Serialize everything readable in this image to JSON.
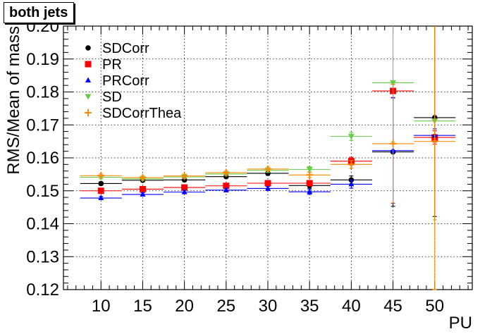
{
  "chart_data": {
    "type": "scatter",
    "title": "both jets",
    "xlabel": "PU",
    "ylabel": "RMS/Mean of mass",
    "xlim": [
      5.5,
      54.5
    ],
    "ylim": [
      0.12,
      0.2
    ],
    "grid": true,
    "legend_position": "top-left",
    "x_ticks": [
      10,
      15,
      20,
      25,
      30,
      35,
      40,
      45,
      50
    ],
    "y_ticks": [
      "0.12",
      "0.13",
      "0.14",
      "0.15",
      "0.16",
      "0.17",
      "0.18",
      "0.19",
      "0.20"
    ],
    "x": [
      10,
      15,
      20,
      25,
      30,
      35,
      40,
      45,
      50
    ],
    "series": [
      {
        "name": "SDCorr",
        "color": "#000000",
        "marker": "circle",
        "values": [
          0.1522,
          0.1532,
          0.1533,
          0.1543,
          0.1553,
          0.1516,
          0.1533,
          0.1618,
          0.1722
        ],
        "errors": [
          0.0005,
          0.0005,
          0.0005,
          0.0005,
          0.0006,
          0.0008,
          0.0012,
          0.0165,
          0.03
        ]
      },
      {
        "name": "PR",
        "color": "#ff0000",
        "marker": "square",
        "values": [
          0.15,
          0.1505,
          0.151,
          0.1515,
          0.1523,
          0.1523,
          0.159,
          0.1803,
          0.1662
        ],
        "errors": [
          0.0005,
          0.0005,
          0.0005,
          0.0005,
          0.0006,
          0.0008,
          0.0012,
          0.002,
          0.002
        ]
      },
      {
        "name": "PRCorr",
        "color": "#0000ff",
        "marker": "triangle-up",
        "values": [
          0.1478,
          0.1489,
          0.1496,
          0.1502,
          0.1507,
          0.1497,
          0.152,
          0.1622,
          0.1668
        ],
        "errors": [
          0.0005,
          0.0005,
          0.0005,
          0.0005,
          0.0006,
          0.0008,
          0.0012,
          0.016,
          0.002
        ]
      },
      {
        "name": "SD",
        "color": "#66cc44",
        "marker": "triangle-down",
        "values": [
          0.1541,
          0.1536,
          0.1542,
          0.1551,
          0.1562,
          0.1565,
          0.1665,
          0.1828,
          0.1712
        ],
        "errors": [
          0.0005,
          0.0005,
          0.0005,
          0.0005,
          0.0006,
          0.0008,
          0.0012,
          0.018,
          0.03
        ]
      },
      {
        "name": "SDCorrThea",
        "color": "#ff8800",
        "marker": "cross",
        "values": [
          0.1546,
          0.154,
          0.1545,
          0.1555,
          0.1566,
          0.1548,
          0.158,
          0.1643,
          0.165
        ],
        "errors": [
          0.0005,
          0.0005,
          0.0005,
          0.0005,
          0.0006,
          0.0008,
          0.0012,
          0.018,
          0.045
        ]
      }
    ]
  }
}
